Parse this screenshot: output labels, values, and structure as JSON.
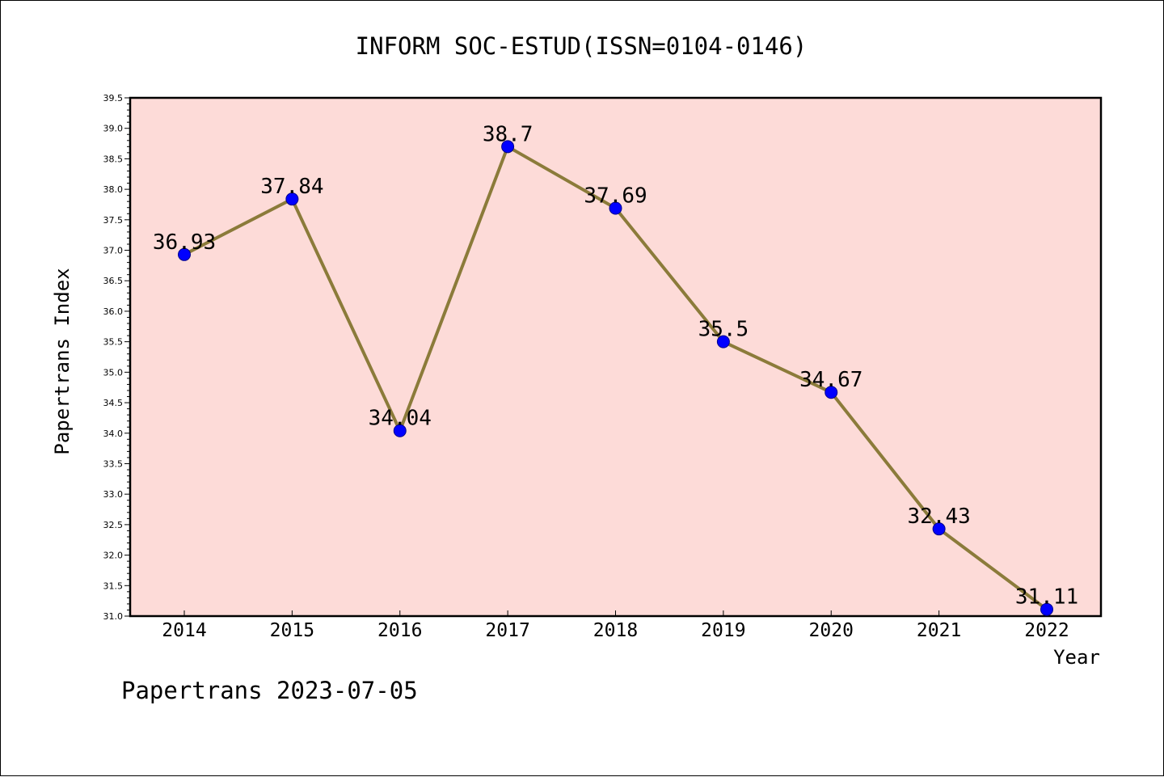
{
  "chart_data": {
    "type": "line",
    "title": "INFORM SOC-ESTUD(ISSN=0104-0146)",
    "xlabel": "Year",
    "ylabel": "Papertrans Index",
    "categories": [
      "2014",
      "2015",
      "2016",
      "2017",
      "2018",
      "2019",
      "2020",
      "2021",
      "2022"
    ],
    "values": [
      36.93,
      37.84,
      34.04,
      38.7,
      37.69,
      35.5,
      34.67,
      32.43,
      31.11
    ],
    "data_labels": [
      "36.93",
      "37.84",
      "34.04",
      "38.7",
      "37.69",
      "35.5",
      "34.67",
      "32.43",
      "31.11"
    ],
    "ylim": [
      31.0,
      39.5
    ],
    "yticks": [
      "31.0",
      "31.5",
      "32.0",
      "32.5",
      "33.0",
      "33.5",
      "34.0",
      "34.5",
      "35.0",
      "35.5",
      "36.0",
      "36.5",
      "37.0",
      "37.5",
      "38.0",
      "38.5",
      "39.0",
      "39.5"
    ],
    "grid": false,
    "legend": "none",
    "colors": {
      "plot_background": "#fddbd8",
      "line": "#8b7b3a",
      "marker": "#0000ff",
      "marker_edge": "#00008b"
    }
  },
  "footer": "Papertrans 2023-07-05"
}
